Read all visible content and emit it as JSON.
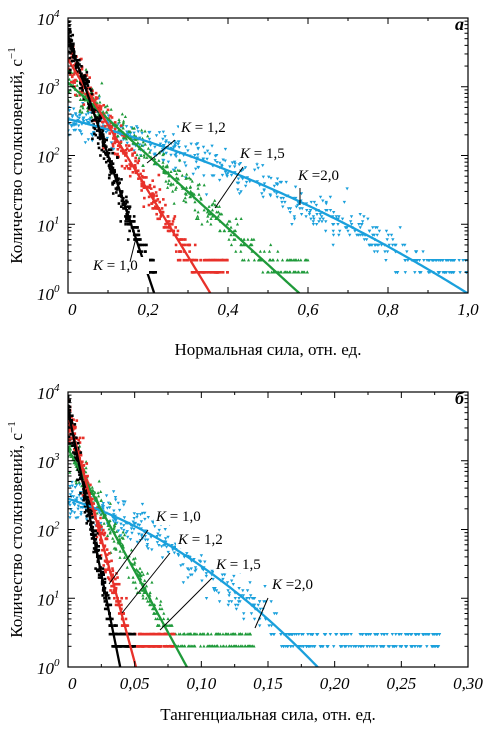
{
  "chart_data": [
    {
      "type": "scatter",
      "panel_label": "а",
      "xlabel": "Нормальная сила, отн. ед.",
      "ylabel": "Количество столкновений, с",
      "ylabel_exp": "−1",
      "xlim": [
        0,
        1.0
      ],
      "ylim": [
        1,
        10000
      ],
      "y_scale": "log",
      "x_ticks": [
        "0",
        "0,2",
        "0,4",
        "0,6",
        "0,8",
        "1,0"
      ],
      "x_tick_values": [
        0,
        0.2,
        0.4,
        0.6,
        0.8,
        1.0
      ],
      "y_ticks": [
        {
          "base": "10",
          "exp": "0",
          "value": 1
        },
        {
          "base": "10",
          "exp": "1",
          "value": 10
        },
        {
          "base": "10",
          "exp": "2",
          "value": 100
        },
        {
          "base": "10",
          "exp": "3",
          "value": 1000
        },
        {
          "base": "10",
          "exp": "4",
          "value": 10000
        }
      ],
      "series": [
        {
          "name": "K = 1,0",
          "color": "#000000",
          "marker": "square",
          "fit_y0": 5500,
          "fit_decay": 40,
          "fit_curvature": 0,
          "scatter_xmax": 0.22
        },
        {
          "name": "K = 1,2",
          "color": "#e8312a",
          "marker": "square",
          "fit_y0": 2500,
          "fit_decay": 22,
          "fit_curvature": 0,
          "scatter_xmax": 0.4
        },
        {
          "name": "K = 1,5",
          "color": "#1f9a3a",
          "marker": "triangle",
          "fit_y0": 1150,
          "fit_decay": 12.2,
          "fit_curvature": 0,
          "scatter_xmax": 0.6
        },
        {
          "name": "K =2,0",
          "color": "#1aa0dc",
          "marker": "triangle-down",
          "fit_y0": 340,
          "fit_decay": 3.3,
          "fit_curvature": 2.55,
          "scatter_xmax": 1.0
        }
      ],
      "annotations": [
        {
          "k": "K",
          "rest": " = 1,0",
          "series": 0
        },
        {
          "k": "K",
          "rest": " = 1,2",
          "series": 1
        },
        {
          "k": "K",
          "rest": " = 1,5",
          "series": 2
        },
        {
          "k": "K",
          "rest": " =2,0",
          "series": 3
        }
      ]
    },
    {
      "type": "scatter",
      "panel_label": "б",
      "xlabel": "Тангенциальная сила, отн. ед.",
      "ylabel": "Количество столкновений, с",
      "ylabel_exp": "−1",
      "xlim": [
        0,
        0.3
      ],
      "ylim": [
        1,
        10000
      ],
      "y_scale": "log",
      "x_ticks": [
        "0",
        "0,05",
        "0,10",
        "0,15",
        "0,20",
        "0,25",
        "0,30"
      ],
      "x_tick_values": [
        0,
        0.05,
        0.1,
        0.15,
        0.2,
        0.25,
        0.3
      ],
      "y_ticks": [
        {
          "base": "10",
          "exp": "0",
          "value": 1
        },
        {
          "base": "10",
          "exp": "1",
          "value": 10
        },
        {
          "base": "10",
          "exp": "2",
          "value": 100
        },
        {
          "base": "10",
          "exp": "3",
          "value": 1000
        },
        {
          "base": "10",
          "exp": "4",
          "value": 10000
        }
      ],
      "series": [
        {
          "name": "K = 1,0",
          "color": "#000000",
          "marker": "square",
          "fit_y0": 5500,
          "fit_decay": 220,
          "fit_curvature": 0,
          "scatter_xmax": 0.05
        },
        {
          "name": "K = 1,2",
          "color": "#e8312a",
          "marker": "square",
          "fit_y0": 4500,
          "fit_decay": 165,
          "fit_curvature": 0,
          "scatter_xmax": 0.08
        },
        {
          "name": "K = 1,5",
          "color": "#1f9a3a",
          "marker": "triangle",
          "fit_y0": 1500,
          "fit_decay": 82,
          "fit_curvature": 0,
          "scatter_xmax": 0.14
        },
        {
          "name": "K =2,0",
          "color": "#1aa0dc",
          "marker": "triangle-down",
          "fit_y0": 280,
          "fit_decay": 14,
          "fit_curvature": 86,
          "scatter_xmax": 0.28
        }
      ],
      "annotations": [
        {
          "k": "K",
          "rest": " = 1,0",
          "series": 0
        },
        {
          "k": "K",
          "rest": " = 1,2",
          "series": 1
        },
        {
          "k": "K",
          "rest": " = 1,5",
          "series": 2
        },
        {
          "k": "K",
          "rest": " =2,0",
          "series": 3
        }
      ]
    }
  ]
}
